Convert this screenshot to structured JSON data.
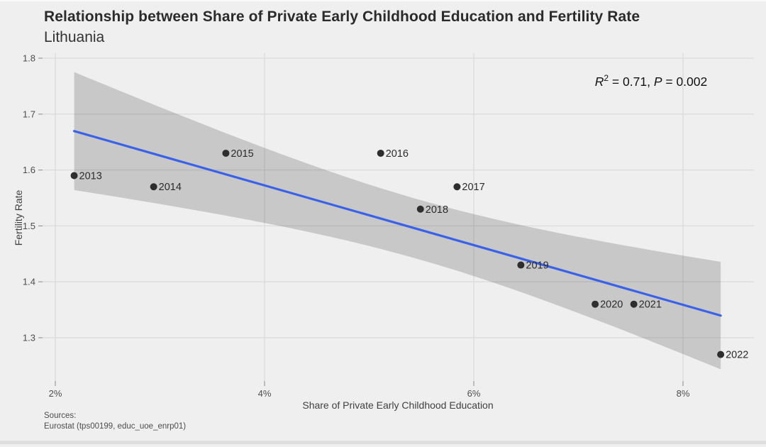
{
  "header": {
    "title": "Relationship between Share of Private Early Childhood Education and Fertility Rate",
    "subtitle": "Lithuania"
  },
  "annotation": {
    "r_label": "R",
    "r_exp": "2",
    "r_eq": " = ",
    "r2_value": "0.71",
    "comma": ", ",
    "p_label": "P",
    "p_eq": " = ",
    "p_value": "0.002"
  },
  "axes": {
    "x_title": "Share of Private Early Childhood Education",
    "y_title": "Fertility Rate",
    "x_ticks": [
      {
        "label": "2%",
        "value": 2
      },
      {
        "label": "4%",
        "value": 4
      },
      {
        "label": "6%",
        "value": 6
      },
      {
        "label": "8%",
        "value": 8
      }
    ],
    "y_ticks": [
      {
        "label": "1.8",
        "value": 1.8
      },
      {
        "label": "1.7",
        "value": 1.7
      },
      {
        "label": "1.6",
        "value": 1.6
      },
      {
        "label": "1.5",
        "value": 1.5
      },
      {
        "label": "1.4",
        "value": 1.4
      },
      {
        "label": "1.3",
        "value": 1.3
      }
    ]
  },
  "sources": {
    "line1": "Sources:",
    "line2": " Eurostat (tps00199, educ_uoe_enrp01)"
  },
  "colors": {
    "background": "#efefef",
    "gridline": "#dbdbdb",
    "tick": "#9a9a9a",
    "tick_label": "#4d4d4d",
    "band_fill": "rgba(0,0,0,0.16)",
    "trend_line": "#3a62e9",
    "point": "#2e2e2e",
    "point_label": "#2b2b2b"
  },
  "chart_data": {
    "type": "scatter",
    "title": "Relationship between Share of Private Early Childhood Education and Fertility Rate",
    "subtitle": "Lithuania",
    "xlabel": "Share of Private Early Childhood Education",
    "ylabel": "Fertility Rate",
    "xlim": [
      1.88,
      8.68
    ],
    "ylim": [
      1.22,
      1.81
    ],
    "grid": true,
    "legend": false,
    "stat_annotation": {
      "r_squared": 0.71,
      "p_value": 0.002
    },
    "trend": {
      "kind": "linear",
      "confidence_band": 0.95
    },
    "points": [
      {
        "year": "2013",
        "x": 2.18,
        "y": 1.59
      },
      {
        "year": "2014",
        "x": 2.94,
        "y": 1.57
      },
      {
        "year": "2015",
        "x": 3.63,
        "y": 1.63
      },
      {
        "year": "2016",
        "x": 5.11,
        "y": 1.63
      },
      {
        "year": "2017",
        "x": 5.84,
        "y": 1.57
      },
      {
        "year": "2018",
        "x": 5.49,
        "y": 1.53
      },
      {
        "year": "2019",
        "x": 6.45,
        "y": 1.43
      },
      {
        "year": "2020",
        "x": 7.16,
        "y": 1.36
      },
      {
        "year": "2021",
        "x": 7.53,
        "y": 1.36
      },
      {
        "year": "2022",
        "x": 8.36,
        "y": 1.27
      }
    ]
  }
}
